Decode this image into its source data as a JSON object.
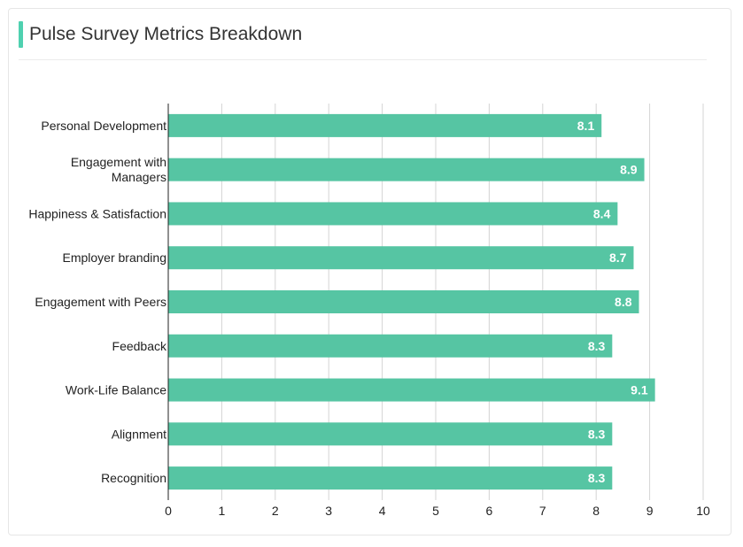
{
  "header": {
    "title": "Pulse Survey Metrics Breakdown"
  },
  "colors": {
    "accent": "#4fd1b0",
    "bar": "#56c5a3",
    "grid": "#d4d4d4",
    "axis": "#222222"
  },
  "chart_data": {
    "type": "bar",
    "orientation": "horizontal",
    "title": "Pulse Survey Metrics Breakdown",
    "categories": [
      [
        "Personal Development"
      ],
      [
        "Engagement with",
        "Managers"
      ],
      [
        "Happiness & Satisfaction"
      ],
      [
        "Employer branding"
      ],
      [
        "Engagement with Peers"
      ],
      [
        "Feedback"
      ],
      [
        "Work-Life Balance"
      ],
      [
        "Alignment"
      ],
      [
        "Recognition"
      ]
    ],
    "values": [
      8.1,
      8.9,
      8.4,
      8.7,
      8.8,
      8.3,
      9.1,
      8.3,
      8.3
    ],
    "value_labels": [
      "8.1",
      "8.9",
      "8.4",
      "8.7",
      "8.8",
      "8.3",
      "9.1",
      "8.3",
      "8.3"
    ],
    "xlim": [
      0,
      10
    ],
    "xticks": [
      "0",
      "1",
      "2",
      "3",
      "4",
      "5",
      "6",
      "7",
      "8",
      "9",
      "10"
    ],
    "grid": true,
    "legend": "none"
  }
}
